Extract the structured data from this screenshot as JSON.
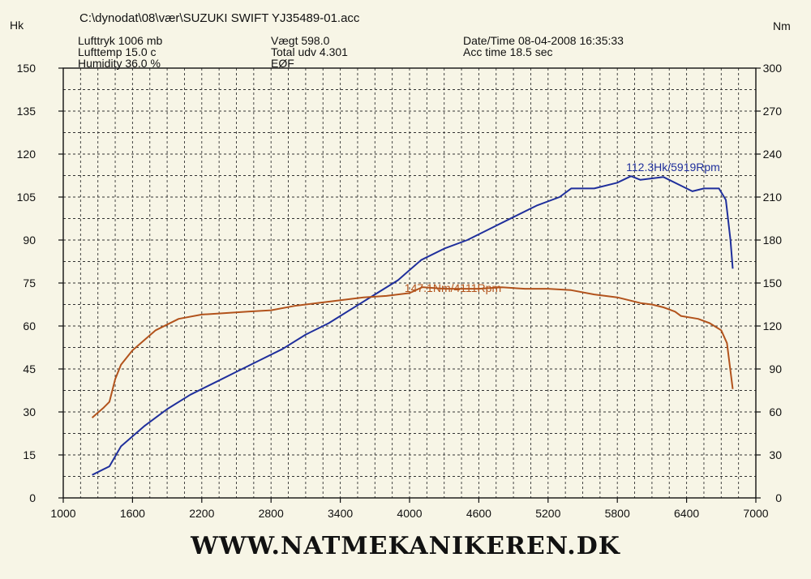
{
  "header": {
    "filepath": "C:\\dynodat\\08\\vær\\SUZUKI SWIFT YJ35489-01.acc",
    "lufttryk": "Lufttryk   1006 mb",
    "lufttemp": "Lufttemp   15.0 c",
    "humidity": "Humidity   36.0 %",
    "vaegt": "Vægt       598.0",
    "total_udv": "Total udv 4.301",
    "eof": "EØF",
    "datetime": "Date/Time  08-04-2008 16:35:33",
    "acc_time": "Acc time   18.5 sec"
  },
  "left_unit": "Hk",
  "right_unit": "Nm",
  "footer": "WWW.NATMEKANIKEREN.DK",
  "colors": {
    "power": "#1f2f9c",
    "torque": "#b2531c",
    "grid": "#333333",
    "background": "#f7f5e6"
  },
  "chart_data": {
    "type": "line",
    "x_ticks": [
      "1000",
      "1600",
      "2200",
      "2800",
      "3400",
      "4000",
      "4600",
      "5200",
      "5800",
      "6400",
      "7000"
    ],
    "y_left_ticks": [
      "0",
      "15",
      "30",
      "45",
      "60",
      "75",
      "90",
      "105",
      "120",
      "135",
      "150"
    ],
    "y_right_ticks": [
      "0",
      "30",
      "60",
      "90",
      "120",
      "150",
      "180",
      "210",
      "240",
      "270",
      "300"
    ],
    "xlim": [
      1000,
      7000
    ],
    "ylim_left": [
      0,
      150
    ],
    "ylim_right": [
      0,
      300
    ],
    "grid": true,
    "series": [
      {
        "axis": "left",
        "color": "#1f2f9c",
        "x": [
          1250,
          1400,
          1500,
          1700,
          1900,
          2100,
          2300,
          2500,
          2700,
          2900,
          3100,
          3300,
          3500,
          3700,
          3900,
          4100,
          4300,
          4500,
          4700,
          4900,
          5100,
          5300,
          5400,
          5600,
          5800,
          5919,
          6000,
          6200,
          6350,
          6450,
          6550,
          6680,
          6740,
          6780,
          6800
        ],
        "y": [
          8,
          11,
          18,
          25,
          31,
          36,
          40,
          44,
          48,
          52,
          57,
          61,
          66,
          71,
          76,
          83,
          87,
          90,
          94,
          98,
          102,
          105,
          108,
          108,
          110,
          112.3,
          111,
          112,
          109,
          107,
          108,
          108,
          104,
          90,
          80
        ]
      },
      {
        "axis": "right",
        "color": "#b2531c",
        "x": [
          1250,
          1350,
          1400,
          1450,
          1500,
          1600,
          1800,
          2000,
          2200,
          2400,
          2600,
          2800,
          3000,
          3200,
          3400,
          3600,
          3800,
          4000,
          4111,
          4300,
          4600,
          4800,
          5000,
          5200,
          5400,
          5600,
          5800,
          6000,
          6100,
          6200,
          6300,
          6350,
          6500,
          6600,
          6700,
          6750,
          6800
        ],
        "y": [
          56,
          63,
          67,
          83,
          93,
          103,
          117,
          125,
          128,
          129,
          130,
          131,
          134,
          136,
          138,
          140,
          141,
          143,
          147.1,
          146,
          146,
          147,
          146,
          146,
          145,
          142,
          140,
          136,
          135,
          133,
          130,
          127,
          125,
          122,
          117,
          108,
          76
        ]
      }
    ],
    "annotations": [
      "112.3Hk/5919Rpm",
      "147.1Nm/4111Rpm"
    ]
  }
}
